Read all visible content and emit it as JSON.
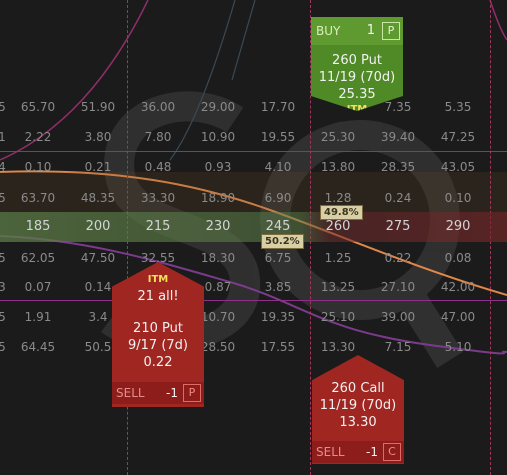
{
  "chart_grid": {
    "rows": [
      [
        "5",
        "65.70",
        "51.90",
        "36.00",
        "29.00",
        "",
        "17.70",
        "",
        "7.35",
        "5.35"
      ],
      [
        "1",
        "2.22",
        "3.80",
        "7.80",
        "10.90",
        "",
        "19.55",
        "25.30",
        "39.40",
        "47.25"
      ],
      [
        "4",
        "0.10",
        "0.21",
        "0.48",
        "0.93",
        "",
        "4.10",
        "13.80",
        "28.35",
        "43.05"
      ],
      [
        "5",
        "63.70",
        "48.35",
        "33.30",
        "18.90",
        "",
        "6.90",
        "1.28",
        "0.24",
        "0.10"
      ],
      [
        "",
        "185",
        "200",
        "215",
        "230",
        "",
        "245",
        "260",
        "275",
        "290"
      ],
      [
        "5",
        "62.05",
        "47.50",
        "32.55",
        "18.30",
        "",
        "6.75",
        "1.25",
        "0.22",
        "0.08"
      ],
      [
        "3",
        "0.07",
        "0.14",
        "",
        "0.87",
        "",
        "3.85",
        "13.25",
        "27.10",
        "42.00"
      ],
      [
        "5",
        "1.91",
        "3.4",
        "",
        "10.70",
        "",
        "19.35",
        "25.10",
        "39.00",
        "47.00"
      ],
      [
        "5",
        "64.45",
        "50.5",
        "",
        "28.50",
        "",
        "17.55",
        "13.30",
        "7.15",
        "5.10"
      ]
    ],
    "strike_row_index": 4
  },
  "probabilities": {
    "upper": "49.8%",
    "lower": "50.2%"
  },
  "orders": {
    "buy_put": {
      "side": "BUY",
      "qty": "1",
      "tag": "P",
      "line1": "260 Put",
      "line2": "11/19 (70d)",
      "price": "25.35",
      "itm": "ITM"
    },
    "sell_put": {
      "side": "SELL",
      "qty": "-1",
      "tag": "P",
      "itm": "ITM",
      "partial": "21 all!",
      "line1": "210 Put",
      "line2": "9/17 (7d)",
      "price": "0.22"
    },
    "sell_call": {
      "side": "SELL",
      "qty": "-1",
      "tag": "C",
      "line1": "260 Call",
      "line2": "11/19 (70d)",
      "price": "13.30"
    }
  },
  "colors": {
    "background": "#1b1b1b",
    "buy": "#4f8a27",
    "sell": "#a02622",
    "itm": "#f3e25a",
    "orange_curve": "#e0874a",
    "magenta_line": "#8e2f8a"
  },
  "watermark": "SQ"
}
